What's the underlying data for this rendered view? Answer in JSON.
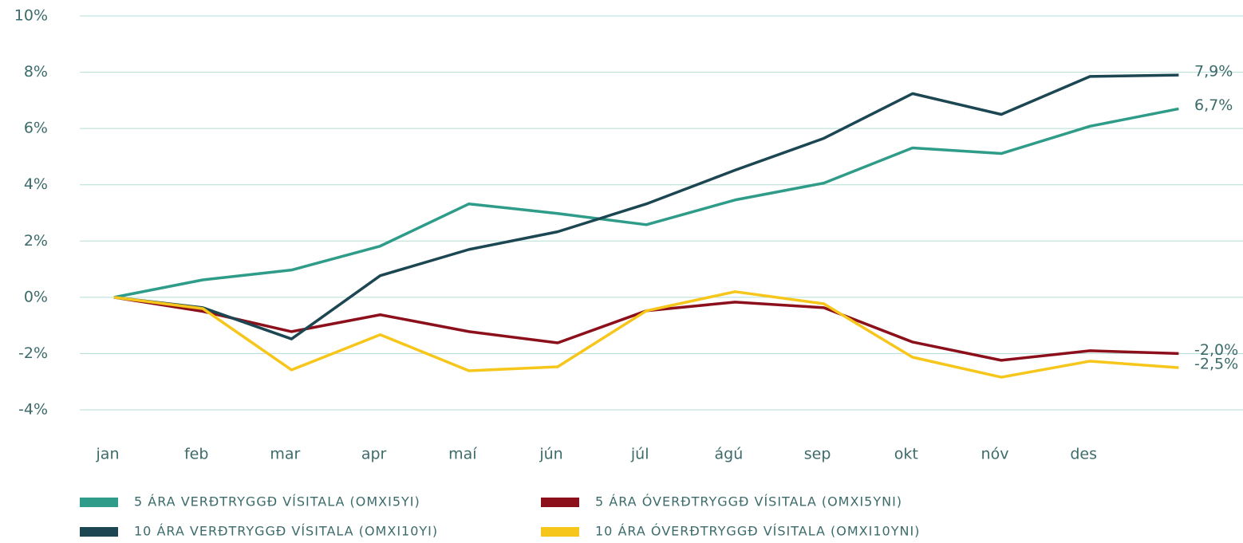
{
  "chart_data": {
    "type": "line",
    "categories": [
      "jan",
      "feb",
      "mar",
      "apr",
      "maí",
      "jún",
      "júl",
      "ágú",
      "sep",
      "okt",
      "nóv",
      "des",
      null
    ],
    "series": [
      {
        "name": "5 ÁRA VERÐTRYGGÐ VÍSITALA (OMXI5YI)",
        "color": "#2e9c88",
        "end_label": "6,7%",
        "values": [
          0,
          0.62,
          0.97,
          1.82,
          3.32,
          2.98,
          2.58,
          3.46,
          4.06,
          5.31,
          5.11,
          6.08,
          6.7
        ]
      },
      {
        "name": "5 ÁRA ÓVERÐTRYGGÐ VÍSITALA (OMXI5YNI)",
        "color": "#8c0f1c",
        "end_label": "-2,0%",
        "values": [
          0,
          -0.5,
          -1.22,
          -0.62,
          -1.22,
          -1.62,
          -0.48,
          -0.17,
          -0.37,
          -1.59,
          -2.24,
          -1.9,
          -2.0
        ]
      },
      {
        "name": "10 ÁRA VERÐTRYGGÐ VÍSITALA (OMXI10YI)",
        "color": "#1c4752",
        "end_label": "7,9%",
        "values": [
          0,
          -0.37,
          -1.48,
          0.77,
          1.7,
          2.33,
          3.32,
          4.52,
          5.65,
          7.24,
          6.5,
          7.85,
          7.9
        ]
      },
      {
        "name": "10 ÁRA ÓVERÐTRYGGÐ VÍSITALA (OMXI10YNI)",
        "color": "#f6c61b",
        "end_label": "-2,5%",
        "values": [
          0,
          -0.4,
          -2.58,
          -1.33,
          -2.61,
          -2.47,
          -0.48,
          0.2,
          -0.23,
          -2.13,
          -2.84,
          -2.27,
          -2.5
        ]
      }
    ],
    "ylim": [
      -4,
      10
    ],
    "yticks": [
      {
        "value": -4,
        "label": "-4%"
      },
      {
        "value": -2,
        "label": "-2%"
      },
      {
        "value": 0,
        "label": "0%"
      },
      {
        "value": 2,
        "label": "2%"
      },
      {
        "value": 4,
        "label": "4%"
      },
      {
        "value": 6,
        "label": "6%"
      },
      {
        "value": 8,
        "label": "8%"
      },
      {
        "value": 10,
        "label": "10%"
      }
    ],
    "grid": true
  }
}
